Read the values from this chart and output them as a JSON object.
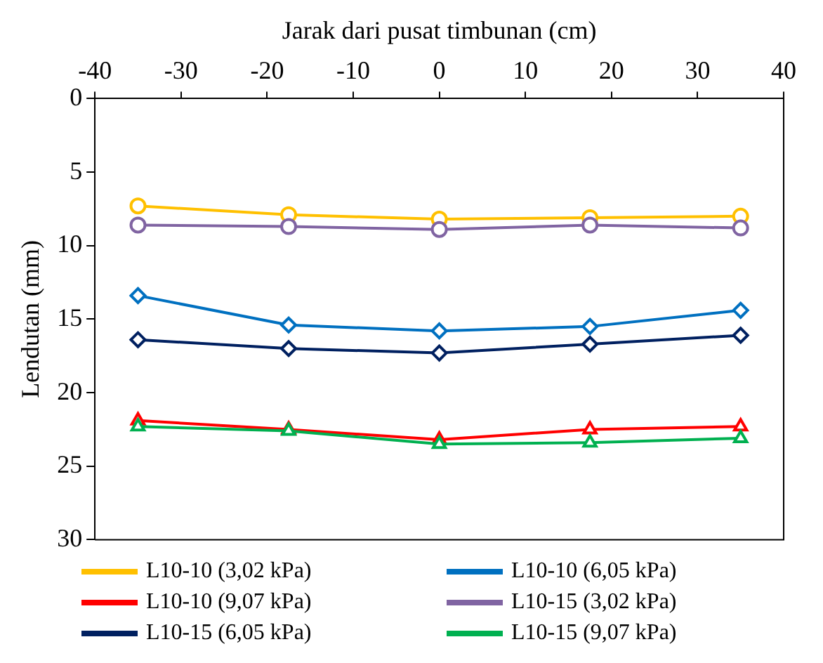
{
  "chart_data": {
    "type": "line",
    "xlabel": "Jarak dari pusat timbunan (cm)",
    "ylabel": "Lendutan (mm)",
    "xlim": [
      -40,
      40
    ],
    "xticks": [
      -40,
      -30,
      -20,
      -10,
      0,
      10,
      20,
      30,
      40
    ],
    "ylim": [
      30,
      0
    ],
    "yticks": [
      0,
      5,
      10,
      15,
      20,
      25,
      30
    ],
    "grid": false,
    "legend": "bottom",
    "series": [
      {
        "name": "L10-10 (3,02 kPa)",
        "color": "#ffc000",
        "marker": "circle",
        "x": [
          -35,
          -17.5,
          0,
          17.5,
          35
        ],
        "values": [
          7.3,
          7.9,
          8.2,
          8.1,
          8.0
        ]
      },
      {
        "name": "L10-10 (6,05 kPa)",
        "color": "#0070c0",
        "marker": "diamond",
        "x": [
          -35,
          -17.5,
          0,
          17.5,
          35
        ],
        "values": [
          13.4,
          15.4,
          15.8,
          15.5,
          14.4
        ]
      },
      {
        "name": "L10-10 (9,07 kPa)",
        "color": "#ff0000",
        "marker": "triangle",
        "x": [
          -35,
          -17.5,
          0,
          17.5,
          35
        ],
        "values": [
          21.9,
          22.5,
          23.2,
          22.5,
          22.3
        ]
      },
      {
        "name": "L10-15 (3,02 kPa)",
        "color": "#8064a2",
        "marker": "circle",
        "x": [
          -35,
          -17.5,
          0,
          17.5,
          35
        ],
        "values": [
          8.6,
          8.7,
          8.9,
          8.6,
          8.8
        ]
      },
      {
        "name": "L10-15 (6,05 kPa)",
        "color": "#002060",
        "marker": "diamond",
        "x": [
          -35,
          -17.5,
          0,
          17.5,
          35
        ],
        "values": [
          16.4,
          17.0,
          17.3,
          16.7,
          16.1
        ]
      },
      {
        "name": "L10-15 (9,07 kPa)",
        "color": "#00b050",
        "marker": "triangle",
        "x": [
          -35,
          -17.5,
          0,
          17.5,
          35
        ],
        "values": [
          22.3,
          22.6,
          23.5,
          23.4,
          23.1
        ]
      }
    ]
  }
}
